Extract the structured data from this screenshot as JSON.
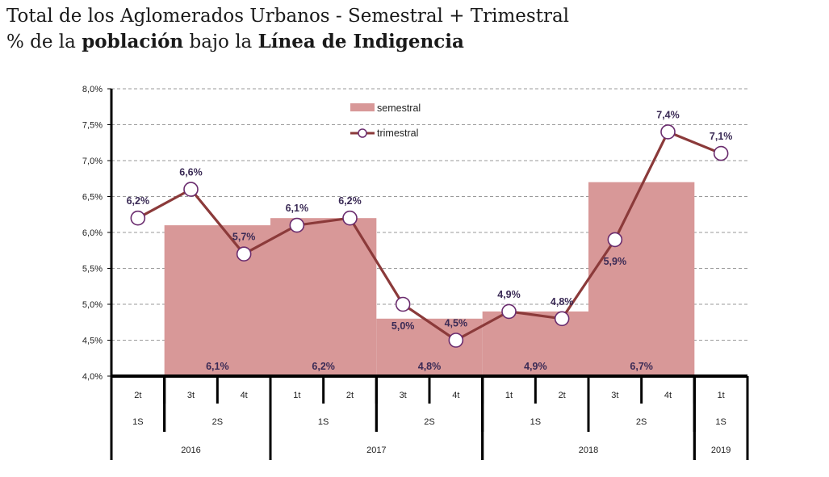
{
  "title": {
    "line1": "Total de los Aglomerados Urbanos - Semestral + Trimestral",
    "line2_prefix": "% de la ",
    "line2_bold1": "población",
    "line2_mid": " bajo la ",
    "line2_bold2": "Línea de Indigencia"
  },
  "colors": {
    "bar": "#d89898",
    "line": "#8b3a3a",
    "marker_fill": "#ffffff",
    "marker_stroke": "#6a2c6e",
    "label": "#3a2a55",
    "grid": "#9a9a9a"
  },
  "chart_data": {
    "type": "bar+line",
    "ylim": [
      4.0,
      8.0
    ],
    "ytick_labels": [
      "4,0%",
      "4,5%",
      "5,0%",
      "5,5%",
      "6,0%",
      "6,5%",
      "7,0%",
      "7,5%",
      "8,0%"
    ],
    "grid": true,
    "legend_placement": "top-center",
    "quarters": [
      "2t",
      "3t",
      "4t",
      "1t",
      "2t",
      "3t",
      "4t",
      "1t",
      "2t",
      "3t",
      "4t",
      "1t"
    ],
    "semesters": [
      {
        "label": "1S",
        "from": 0,
        "to": 0
      },
      {
        "label": "2S",
        "from": 1,
        "to": 2
      },
      {
        "label": "1S",
        "from": 3,
        "to": 4
      },
      {
        "label": "2S",
        "from": 5,
        "to": 6
      },
      {
        "label": "1S",
        "from": 7,
        "to": 8
      },
      {
        "label": "2S",
        "from": 9,
        "to": 10
      },
      {
        "label": "1S",
        "from": 11,
        "to": 11
      }
    ],
    "years": [
      {
        "label": "2016",
        "from": 0,
        "to": 2
      },
      {
        "label": "2017",
        "from": 3,
        "to": 6
      },
      {
        "label": "2018",
        "from": 7,
        "to": 10
      },
      {
        "label": "2019",
        "from": 11,
        "to": 11
      }
    ],
    "series": [
      {
        "name": "semestral",
        "kind": "bar",
        "bars": [
          {
            "from": 1,
            "to": 2,
            "value": 6.1,
            "label": "6,1%"
          },
          {
            "from": 3,
            "to": 4,
            "value": 6.2,
            "label": "6,2%"
          },
          {
            "from": 5,
            "to": 6,
            "value": 4.8,
            "label": "4,8%"
          },
          {
            "from": 7,
            "to": 8,
            "value": 4.9,
            "label": "4,9%"
          },
          {
            "from": 9,
            "to": 10,
            "value": 6.7,
            "label": "6,7%"
          }
        ]
      },
      {
        "name": "trimestral",
        "kind": "line",
        "values": [
          6.2,
          6.6,
          5.7,
          6.1,
          6.2,
          5.0,
          4.5,
          4.9,
          4.8,
          5.9,
          7.4,
          7.1
        ],
        "labels": [
          "6,2%",
          "6,6%",
          "5,7%",
          "6,1%",
          "6,2%",
          "5,0%",
          "4,5%",
          "4,9%",
          "4,8%",
          "5,9%",
          "7,4%",
          "7,1%"
        ],
        "label_position": [
          "above",
          "above",
          "above",
          "above",
          "above",
          "below",
          "above",
          "above",
          "above",
          "below",
          "above",
          "above"
        ]
      }
    ]
  }
}
